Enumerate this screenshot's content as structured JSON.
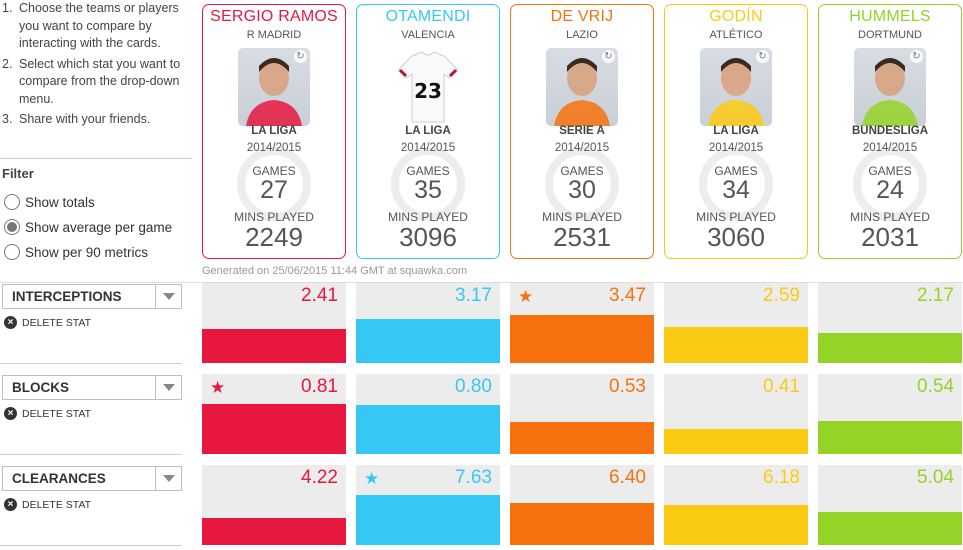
{
  "instructions": [
    {
      "num": "1.",
      "text": "Choose the teams or players you want to compare by interacting with the cards."
    },
    {
      "num": "2.",
      "text": "Select which stat you want to compare from the drop-down menu."
    },
    {
      "num": "3.",
      "text": "Share with your friends."
    }
  ],
  "filter": {
    "title": "Filter",
    "options": [
      {
        "label": "Show totals",
        "checked": false
      },
      {
        "label": "Show average per game",
        "checked": true
      },
      {
        "label": "Show per 90 metrics",
        "checked": false
      }
    ]
  },
  "players": [
    {
      "name": "SERGIO RAMOS",
      "team": "R MADRID",
      "league": "LA LIGA",
      "season": "2014/2015",
      "games_label": "GAMES",
      "games": "27",
      "mins_label": "MINS PLAYED",
      "mins": "2249",
      "color": "#e8173f",
      "photo": "player-photo"
    },
    {
      "name": "OTAMENDI",
      "team": "VALENCIA",
      "league": "LA LIGA",
      "season": "2014/2015",
      "games_label": "GAMES",
      "games": "35",
      "mins_label": "MINS PLAYED",
      "mins": "3096",
      "color": "#36c8f4",
      "photo": "shirt-placeholder",
      "shirt_number": "23"
    },
    {
      "name": "DE VRIJ",
      "team": "LAZIO",
      "league": "SERIE A",
      "season": "2014/2015",
      "games_label": "GAMES",
      "games": "30",
      "mins_label": "MINS PLAYED",
      "mins": "2531",
      "color": "#f7720e",
      "photo": "player-photo"
    },
    {
      "name": "GODÍN",
      "team": "ATLÉTICO",
      "league": "LA LIGA",
      "season": "2014/2015",
      "games_label": "GAMES",
      "games": "34",
      "mins_label": "MINS PLAYED",
      "mins": "3060",
      "color": "#fbcb13",
      "photo": "player-photo"
    },
    {
      "name": "HUMMELS",
      "team": "DORTMUND",
      "league": "BUNDESLIGA",
      "season": "2014/2015",
      "games_label": "GAMES",
      "games": "24",
      "mins_label": "MINS PLAYED",
      "mins": "2031",
      "color": "#95d327",
      "photo": "player-photo"
    }
  ],
  "generated_text": "Generated on 25/06/2015 11:44 GMT at squawka.com",
  "delete_label": "DELETE STAT",
  "stats": [
    {
      "name": "INTERCEPTIONS",
      "values": [
        "2.41",
        "3.17",
        "3.47",
        "2.59",
        "2.17"
      ],
      "star_index": 2,
      "bar_fraction": [
        0.42,
        0.55,
        0.6,
        0.45,
        0.37
      ]
    },
    {
      "name": "BLOCKS",
      "values": [
        "0.81",
        "0.80",
        "0.53",
        "0.41",
        "0.54"
      ],
      "star_index": 0,
      "bar_fraction": [
        0.62,
        0.61,
        0.4,
        0.31,
        0.41
      ]
    },
    {
      "name": "CLEARANCES",
      "values": [
        "4.22",
        "7.63",
        "6.40",
        "6.18",
        "5.04"
      ],
      "star_index": 1,
      "bar_fraction": [
        0.34,
        0.62,
        0.52,
        0.5,
        0.41
      ]
    }
  ]
}
